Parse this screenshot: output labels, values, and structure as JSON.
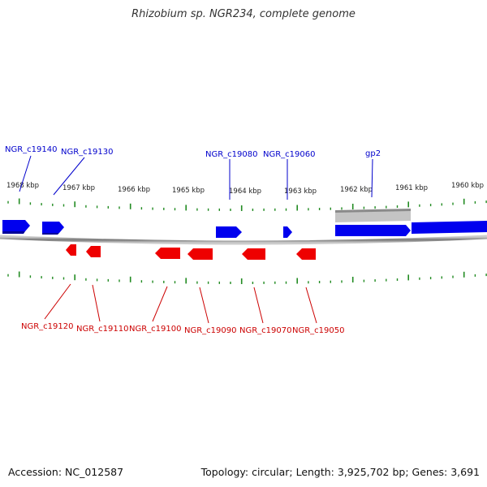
{
  "title": "Rhizobium sp. NGR234, complete genome",
  "footer": {
    "accession": "Accession: NC_012587",
    "summary": "Topology: circular; Length: 3,925,702 bp; Genes: 3,691"
  },
  "colors": {
    "forward": "#0000ee",
    "reverse": "#ee0000",
    "other": "#bbbbbb",
    "tick": "#228b22",
    "backbone": "#888888"
  },
  "scale_labels": [
    "1968 kbp",
    "1967 kbp",
    "1966 kbp",
    "1965 kbp",
    "1964 kbp",
    "1963 kbp",
    "1962 kbp",
    "1961 kbp",
    "1960 kbp"
  ],
  "genes_forward": [
    {
      "label": "NGR_c19140"
    },
    {
      "label": "NGR_c19130"
    },
    {
      "label": "NGR_c19080"
    },
    {
      "label": "NGR_c19060"
    }
  ],
  "genes_other": [
    {
      "label": "gp2"
    }
  ],
  "genes_reverse": [
    {
      "label": "NGR_c19120"
    },
    {
      "label": "NGR_c19110"
    },
    {
      "label": "NGR_c19100"
    },
    {
      "label": "NGR_c19090"
    },
    {
      "label": "NGR_c19070"
    },
    {
      "label": "NGR_c19050"
    }
  ]
}
